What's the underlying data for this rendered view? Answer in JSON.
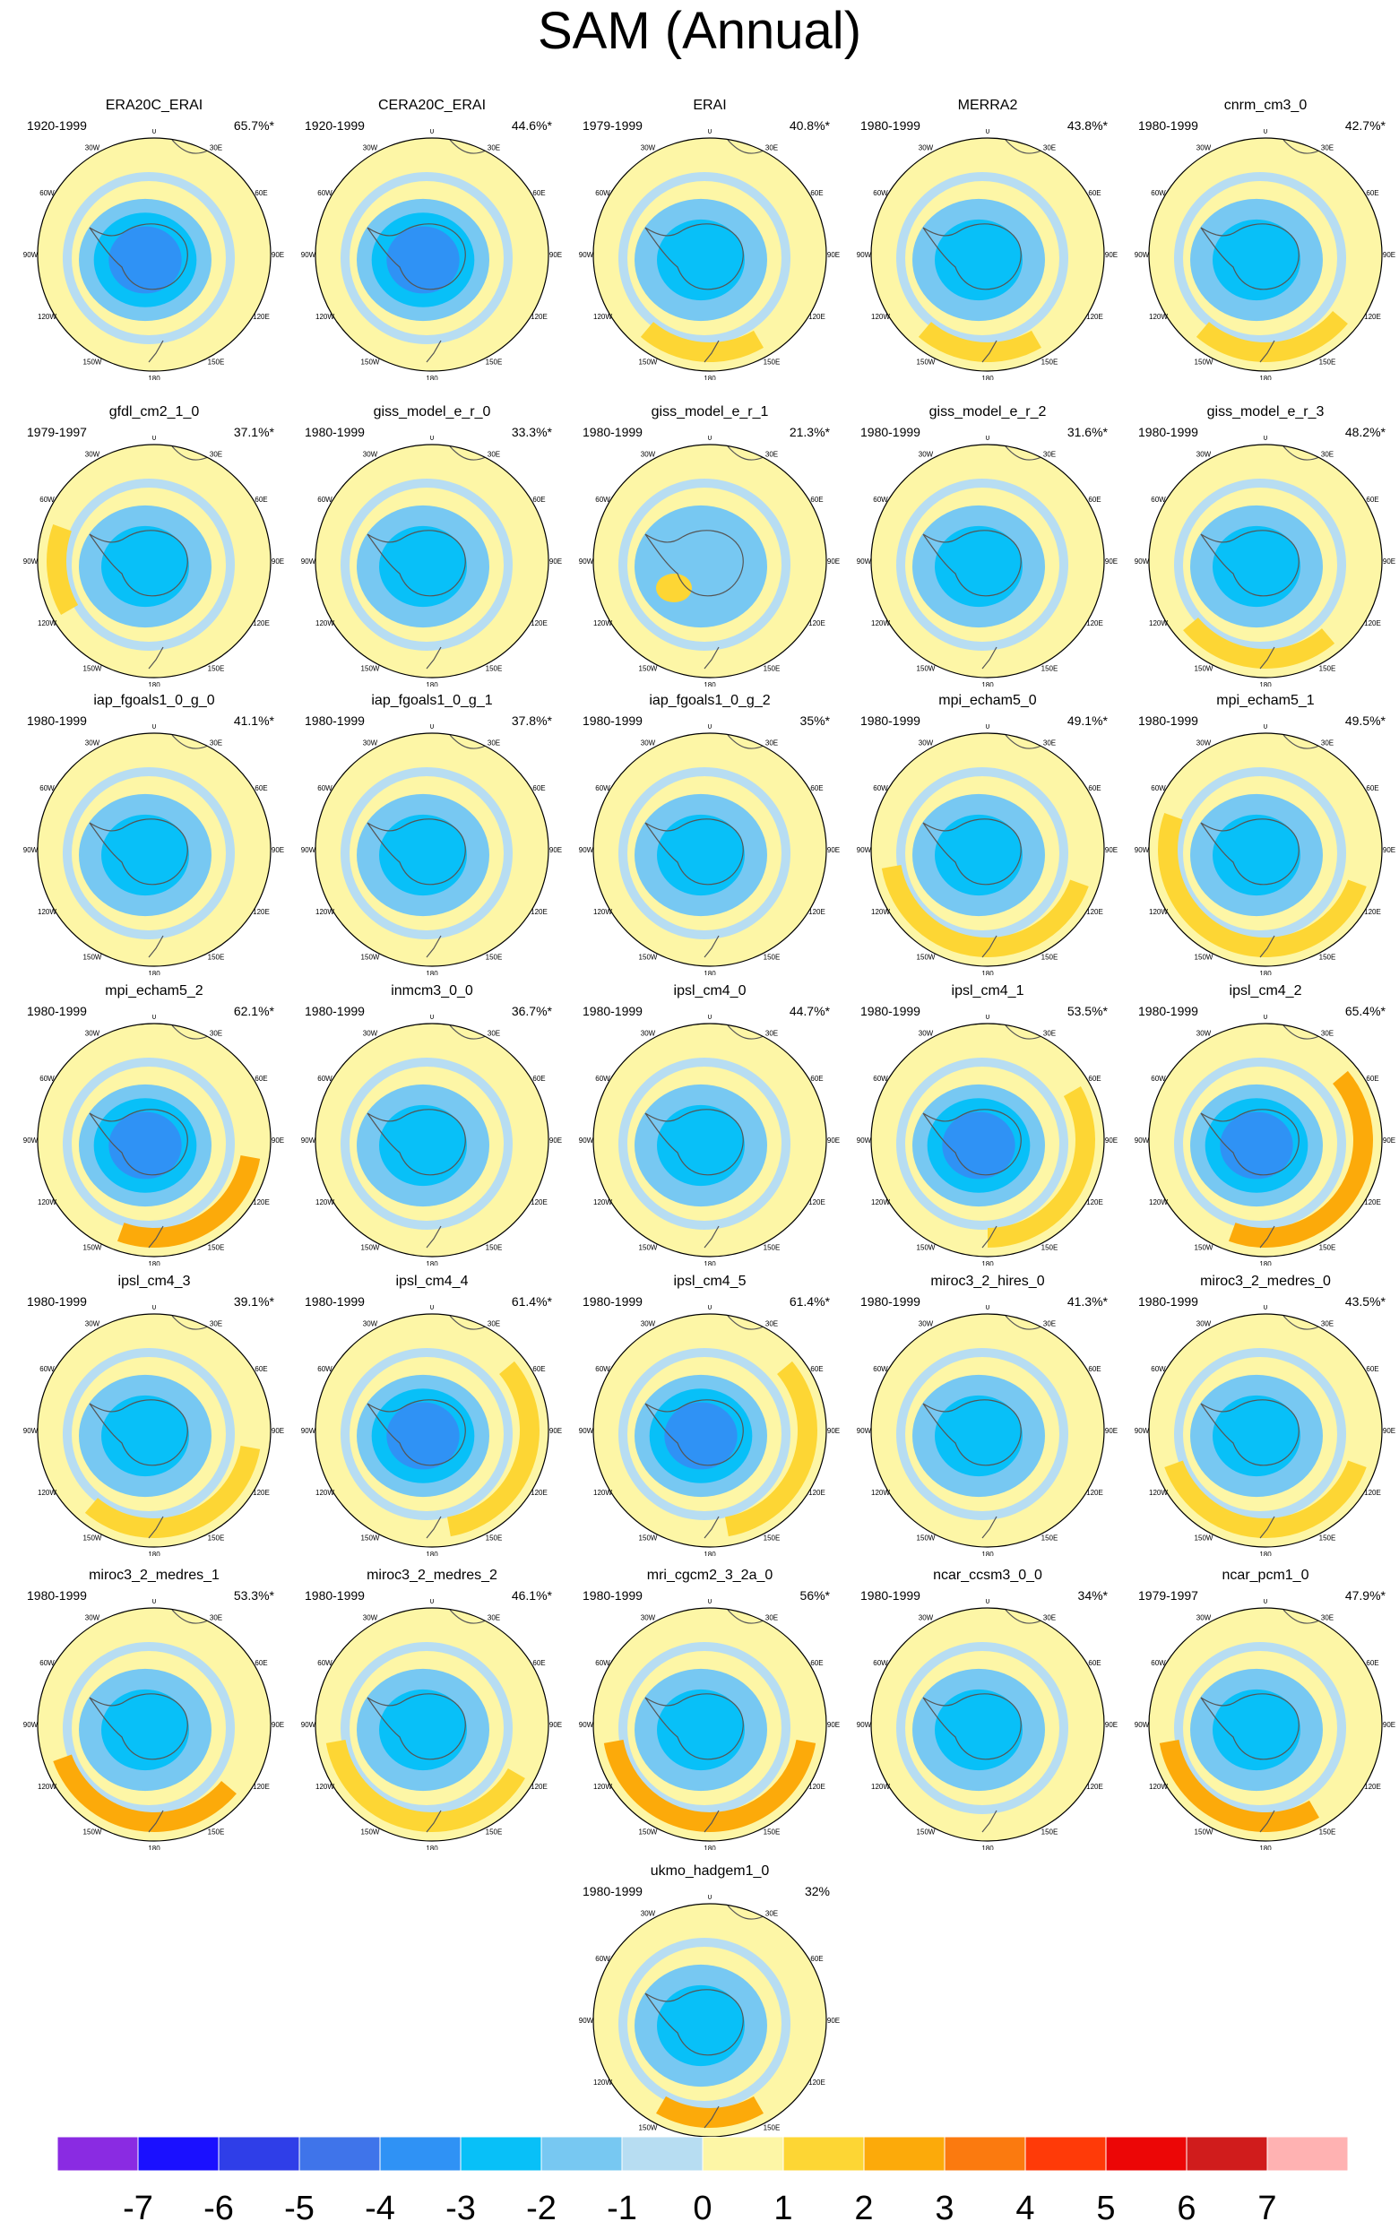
{
  "title": "SAM (Annual)",
  "chart_data": {
    "type": "heatmap",
    "title": "SAM (Annual)",
    "description_units": "",
    "colorbar": {
      "ticks": [
        "-7",
        "-6",
        "-5",
        "-4",
        "-3",
        "-2",
        "-1",
        "0",
        "1",
        "2",
        "3",
        "4",
        "5",
        "6",
        "7"
      ],
      "colors": [
        "#8a2be2",
        "#1a10ff",
        "#2f3ee8",
        "#3f74ea",
        "#2f92f5",
        "#08c0f8",
        "#77c8f2",
        "#b7ddf2",
        "#fdf6a6",
        "#fdd634",
        "#fcaa0a",
        "#fb7a0f",
        "#ff3a08",
        "#ec0606",
        "#d01c1c",
        "#ffb2b2"
      ]
    },
    "map_labels": [
      "0",
      "30E",
      "60E",
      "90E",
      "120E",
      "150E",
      "180",
      "150W",
      "120W",
      "90W",
      "60W",
      "30W"
    ],
    "panels": [
      {
        "name": "ERA20C_ERAI",
        "period": "1920-1999",
        "pct": "65.7%*",
        "neg": -4.2,
        "ring": 1.0,
        "ringArc": [
          0,
          360
        ],
        "blob": 0
      },
      {
        "name": "CERA20C_ERAI",
        "period": "1920-1999",
        "pct": "44.6%*",
        "neg": -3.5,
        "ring": 0.9,
        "ringArc": [
          0,
          360
        ],
        "blob": 0
      },
      {
        "name": "ERAI",
        "period": "1979-1999",
        "pct": "40.8%*",
        "neg": -3.2,
        "ring": 1.6,
        "ringArc": [
          150,
          220
        ],
        "blob": 0
      },
      {
        "name": "MERRA2",
        "period": "1980-1999",
        "pct": "43.8%*",
        "neg": -3.3,
        "ring": 1.6,
        "ringArc": [
          150,
          220
        ],
        "blob": 0
      },
      {
        "name": "cnrm_cm3_0",
        "period": "1980-1999",
        "pct": "42.7%*",
        "neg": -2.9,
        "ring": 1.5,
        "ringArc": [
          130,
          220
        ],
        "blob": 0
      },
      {
        "name": "gfdl_cm2_1_0",
        "period": "1979-1997",
        "pct": "37.1%*",
        "neg": -3.0,
        "ring": 1.5,
        "ringArc": [
          240,
          290
        ],
        "blob": 0
      },
      {
        "name": "giss_model_e_r_0",
        "period": "1980-1999",
        "pct": "33.3%*",
        "neg": -2.6,
        "ring": 1.0,
        "ringArc": [
          0,
          360
        ],
        "blob": 0
      },
      {
        "name": "giss_model_e_r_1",
        "period": "1980-1999",
        "pct": "21.3%*",
        "neg": -1.5,
        "ring": 1.0,
        "ringArc": [
          0,
          360
        ],
        "blob": 1.5
      },
      {
        "name": "giss_model_e_r_2",
        "period": "1980-1999",
        "pct": "31.6%*",
        "neg": -2.5,
        "ring": 0.9,
        "ringArc": [
          0,
          360
        ],
        "blob": 0
      },
      {
        "name": "giss_model_e_r_3",
        "period": "1980-1999",
        "pct": "48.2%*",
        "neg": -3.1,
        "ring": 1.7,
        "ringArc": [
          140,
          230
        ],
        "blob": 0
      },
      {
        "name": "iap_fgoals1_0_g_0",
        "period": "1980-1999",
        "pct": "41.1%*",
        "neg": -2.8,
        "ring": 1.0,
        "ringArc": [
          0,
          360
        ],
        "blob": 0
      },
      {
        "name": "iap_fgoals1_0_g_1",
        "period": "1980-1999",
        "pct": "37.8%*",
        "neg": -2.8,
        "ring": 1.0,
        "ringArc": [
          0,
          360
        ],
        "blob": 0
      },
      {
        "name": "iap_fgoals1_0_g_2",
        "period": "1980-1999",
        "pct": "35%*",
        "neg": -2.5,
        "ring": 1.0,
        "ringArc": [
          0,
          360
        ],
        "blob": 0
      },
      {
        "name": "mpi_echam5_0",
        "period": "1980-1999",
        "pct": "49.1%*",
        "neg": -3.2,
        "ring": 1.7,
        "ringArc": [
          110,
          260
        ],
        "blob": 0
      },
      {
        "name": "mpi_echam5_1",
        "period": "1980-1999",
        "pct": "49.5%*",
        "neg": -3.4,
        "ring": 1.8,
        "ringArc": [
          110,
          290
        ],
        "blob": 0
      },
      {
        "name": "mpi_echam5_2",
        "period": "1980-1999",
        "pct": "62.1%*",
        "neg": -3.8,
        "ring": 2.6,
        "ringArc": [
          100,
          200
        ],
        "blob": 0
      },
      {
        "name": "inmcm3_0_0",
        "period": "1980-1999",
        "pct": "36.7%*",
        "neg": -2.6,
        "ring": 1.0,
        "ringArc": [
          0,
          360
        ],
        "blob": 0
      },
      {
        "name": "ipsl_cm4_0",
        "period": "1980-1999",
        "pct": "44.7%*",
        "neg": -3.0,
        "ring": 1.0,
        "ringArc": [
          0,
          360
        ],
        "blob": 0
      },
      {
        "name": "ipsl_cm4_1",
        "period": "1980-1999",
        "pct": "53.5%*",
        "neg": -3.5,
        "ring": 1.8,
        "ringArc": [
          60,
          180
        ],
        "blob": 0
      },
      {
        "name": "ipsl_cm4_2",
        "period": "1980-1999",
        "pct": "65.4%*",
        "neg": -4.0,
        "ring": 2.5,
        "ringArc": [
          50,
          200
        ],
        "blob": 0
      },
      {
        "name": "ipsl_cm4_3",
        "period": "1980-1999",
        "pct": "39.1%*",
        "neg": -2.8,
        "ring": 1.8,
        "ringArc": [
          100,
          220
        ],
        "blob": 0
      },
      {
        "name": "ipsl_cm4_4",
        "period": "1980-1999",
        "pct": "61.4%*",
        "neg": -3.6,
        "ring": 1.8,
        "ringArc": [
          50,
          170
        ],
        "blob": 0
      },
      {
        "name": "ipsl_cm4_5",
        "period": "1980-1999",
        "pct": "61.4%*",
        "neg": -3.6,
        "ring": 1.8,
        "ringArc": [
          50,
          170
        ],
        "blob": 0
      },
      {
        "name": "miroc3_2_hires_0",
        "period": "1980-1999",
        "pct": "41.3%*",
        "neg": -2.8,
        "ring": 1.0,
        "ringArc": [
          0,
          360
        ],
        "blob": 0
      },
      {
        "name": "miroc3_2_medres_0",
        "period": "1980-1999",
        "pct": "43.5%*",
        "neg": -2.9,
        "ring": 1.6,
        "ringArc": [
          110,
          250
        ],
        "blob": 0
      },
      {
        "name": "miroc3_2_medres_1",
        "period": "1980-1999",
        "pct": "53.3%*",
        "neg": -3.1,
        "ring": 2.4,
        "ringArc": [
          130,
          250
        ],
        "blob": 0
      },
      {
        "name": "miroc3_2_medres_2",
        "period": "1980-1999",
        "pct": "46.1%*",
        "neg": -2.9,
        "ring": 1.7,
        "ringArc": [
          120,
          260
        ],
        "blob": 0
      },
      {
        "name": "mri_cgcm2_3_2a_0",
        "period": "1980-1999",
        "pct": "56%*",
        "neg": -3.4,
        "ring": 2.5,
        "ringArc": [
          100,
          260
        ],
        "blob": 0
      },
      {
        "name": "ncar_ccsm3_0_0",
        "period": "1980-1999",
        "pct": "34%*",
        "neg": -2.7,
        "ring": 1.0,
        "ringArc": [
          0,
          360
        ],
        "blob": 0
      },
      {
        "name": "ncar_pcm1_0",
        "period": "1979-1997",
        "pct": "47.9%*",
        "neg": -3.0,
        "ring": 2.4,
        "ringArc": [
          150,
          260
        ],
        "blob": 0
      },
      {
        "name": "ukmo_hadgem1_0",
        "period": "1980-1999",
        "pct": "32%",
        "neg": -2.8,
        "ring": 2.0,
        "ringArc": [
          150,
          210
        ],
        "blob": 0
      }
    ]
  }
}
